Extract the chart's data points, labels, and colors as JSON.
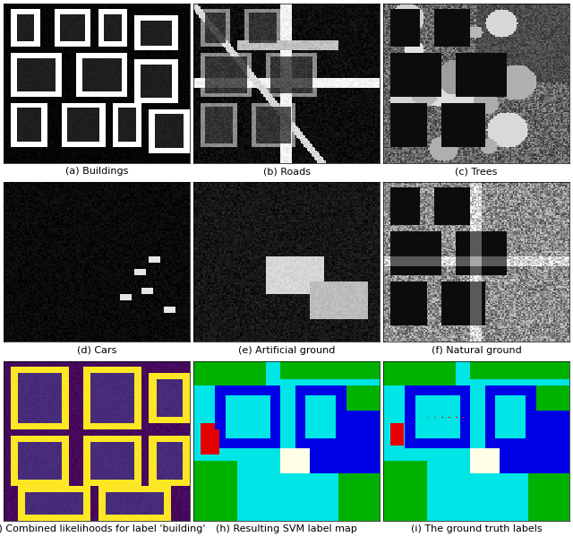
{
  "subplot_labels": [
    "(a) Buildings",
    "(b) Roads",
    "(c) Trees",
    "(d) Cars",
    "(e) Artificial ground",
    "(f) Natural ground",
    "(g) Combined likelihoods for label 'building'",
    "(h) Resulting SVM label map",
    "(i) The ground truth labels"
  ],
  "label_fontsize": 8,
  "figure_bg": "#ffffff",
  "rows": 3,
  "cols": 3,
  "figsize": [
    6.4,
    5.99
  ],
  "dpi": 100
}
